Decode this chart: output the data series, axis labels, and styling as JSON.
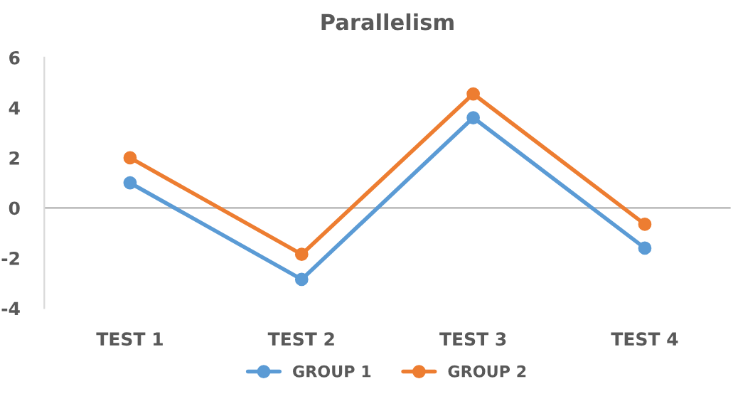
{
  "chart_data": {
    "type": "line",
    "title": "Parallelism",
    "categories": [
      "TEST 1",
      "TEST 2",
      "TEST 3",
      "TEST 4"
    ],
    "series": [
      {
        "name": "GROUP 1",
        "color": "#5b9bd5",
        "values": [
          1,
          -2.85,
          3.6,
          -1.6
        ]
      },
      {
        "name": "GROUP 2",
        "color": "#ed7d31",
        "values": [
          2,
          -1.85,
          4.55,
          -0.65
        ]
      }
    ],
    "ylim": [
      -4,
      6
    ],
    "yticks": [
      -4,
      -2,
      0,
      2,
      4,
      6
    ],
    "grid": false,
    "ref_lines": [
      {
        "axis": "y",
        "value": 0,
        "color": "#bfbfbf"
      }
    ],
    "legend": "bottom",
    "marker": "circle",
    "line_style": "solid"
  }
}
